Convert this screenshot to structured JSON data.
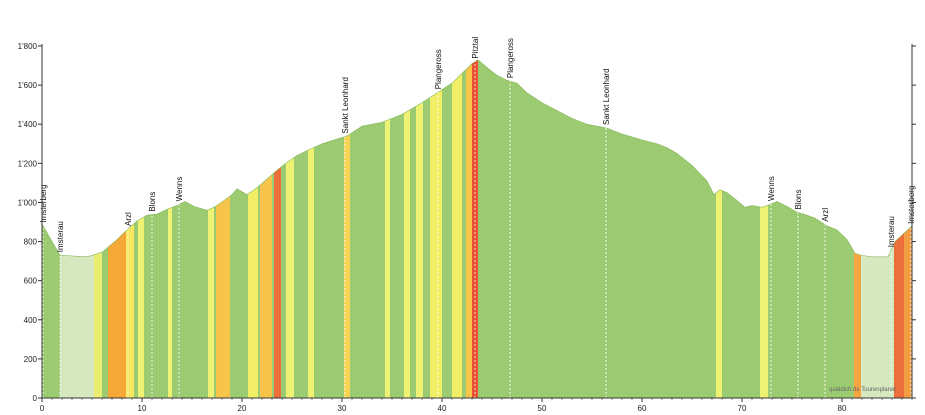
{
  "chart_data": {
    "type": "area",
    "title": "",
    "xlabel": "",
    "ylabel": "",
    "xlim": [
      0,
      87
    ],
    "ylim": [
      0,
      1800
    ],
    "x_ticks": [
      0,
      10,
      20,
      30,
      40,
      50,
      60,
      70,
      80
    ],
    "x_tick_labels": [
      "0",
      "10",
      "20",
      "30",
      "40",
      "50",
      "60",
      "70",
      "80"
    ],
    "y_ticks": [
      0,
      200,
      400,
      600,
      800,
      1000,
      1200,
      1400,
      1600,
      1800
    ],
    "y_tick_labels": [
      "0",
      "200",
      "400",
      "600",
      "800",
      "1'000",
      "1'200",
      "1'400",
      "1'600",
      "1'800"
    ],
    "grid": false,
    "profile": {
      "x": [
        0,
        1.8,
        4.5,
        6,
        7.5,
        8.5,
        9.5,
        10.5,
        11.5,
        12.5,
        13.5,
        14.3,
        15.2,
        16.5,
        17.2,
        18.2,
        19,
        19.5,
        20.5,
        21.5,
        22.5,
        23.5,
        24.5,
        25.5,
        26.5,
        28,
        30.5,
        32,
        34,
        36,
        38,
        39.5,
        41,
        42,
        43,
        43.6,
        44.5,
        45.5,
        46.5,
        47.5,
        48.5,
        50,
        51.5,
        53,
        54.5,
        56.5,
        58,
        60,
        61.5,
        62.5,
        63.5,
        65,
        66.5,
        67.2,
        67.8,
        68.5,
        69.5,
        70.3,
        71,
        72,
        72.8,
        73.5,
        74.5,
        75.5,
        76.5,
        77.3,
        78.5,
        79.5,
        80.5,
        81.3,
        81.9,
        83,
        84.6,
        85.3,
        87
      ],
      "y": [
        890,
        730,
        722,
        745,
        810,
        860,
        905,
        935,
        940,
        965,
        985,
        1005,
        980,
        960,
        975,
        1010,
        1040,
        1070,
        1040,
        1075,
        1120,
        1165,
        1205,
        1240,
        1265,
        1300,
        1340,
        1390,
        1410,
        1450,
        1510,
        1560,
        1610,
        1660,
        1710,
        1730,
        1690,
        1650,
        1625,
        1610,
        1560,
        1510,
        1470,
        1430,
        1400,
        1380,
        1350,
        1320,
        1300,
        1280,
        1250,
        1190,
        1110,
        1040,
        1065,
        1050,
        1010,
        975,
        985,
        975,
        990,
        1005,
        980,
        950,
        935,
        920,
        880,
        860,
        810,
        740,
        730,
        722,
        722,
        800,
        880
      ]
    },
    "light_sections": [
      [
        1.8,
        5.2
      ],
      [
        81.9,
        85.2
      ]
    ],
    "color_bands": [
      {
        "x0": 5.2,
        "x1": 6.0,
        "color": "#eaee6c"
      },
      {
        "x0": 6.6,
        "x1": 8.4,
        "color": "#f6a530"
      },
      {
        "x0": 8.4,
        "x1": 9.2,
        "color": "#f8e85c"
      },
      {
        "x0": 9.6,
        "x1": 10.2,
        "color": "#eef26e"
      },
      {
        "x0": 12.6,
        "x1": 13.0,
        "color": "#eef26e"
      },
      {
        "x0": 16.6,
        "x1": 17.2,
        "color": "#eef26e"
      },
      {
        "x0": 17.4,
        "x1": 18.8,
        "color": "#f7c244"
      },
      {
        "x0": 20.6,
        "x1": 21.6,
        "color": "#f2ee62"
      },
      {
        "x0": 21.8,
        "x1": 23.0,
        "color": "#f7c244"
      },
      {
        "x0": 23.2,
        "x1": 23.9,
        "color": "#ec6a34"
      },
      {
        "x0": 24.4,
        "x1": 25.2,
        "color": "#eef26e"
      },
      {
        "x0": 26.6,
        "x1": 27.2,
        "color": "#eef26e"
      },
      {
        "x0": 30.2,
        "x1": 30.8,
        "color": "#f7d24c"
      },
      {
        "x0": 34.3,
        "x1": 34.8,
        "color": "#eef26e"
      },
      {
        "x0": 36.2,
        "x1": 36.8,
        "color": "#eef26e"
      },
      {
        "x0": 37.4,
        "x1": 38.1,
        "color": "#eef26e"
      },
      {
        "x0": 38.8,
        "x1": 40.0,
        "color": "#f2ee62"
      },
      {
        "x0": 41.0,
        "x1": 42.0,
        "color": "#f2ee62"
      },
      {
        "x0": 42.4,
        "x1": 43.0,
        "color": "#f7c244"
      },
      {
        "x0": 43.0,
        "x1": 43.6,
        "color": "#ea4a2c"
      },
      {
        "x0": 67.4,
        "x1": 68.0,
        "color": "#eef26e"
      },
      {
        "x0": 71.8,
        "x1": 72.6,
        "color": "#eef26e"
      },
      {
        "x0": 81.2,
        "x1": 81.9,
        "color": "#f7a23a"
      },
      {
        "x0": 85.2,
        "x1": 86.2,
        "color": "#ec6a34"
      },
      {
        "x0": 86.2,
        "x1": 87.0,
        "color": "#f29a3a"
      }
    ],
    "places": [
      {
        "name": "Imsterberg",
        "x": 0.1
      },
      {
        "name": "Imsterau",
        "x": 1.8
      },
      {
        "name": "Arzl",
        "x": 8.6
      },
      {
        "name": "Blons",
        "x": 11.0
      },
      {
        "name": "Wenns",
        "x": 13.7
      },
      {
        "name": "Sankt Leonhard",
        "x": 30.3
      },
      {
        "name": "Plangeross",
        "x": 39.6
      },
      {
        "name": "Pitztal",
        "x": 43.3
      },
      {
        "name": "Plangeross",
        "x": 46.8
      },
      {
        "name": "Sankt Leonhard",
        "x": 56.4
      },
      {
        "name": "Wenns",
        "x": 72.9
      },
      {
        "name": "Blons",
        "x": 75.6
      },
      {
        "name": "Arzl",
        "x": 78.3
      },
      {
        "name": "Imsterau",
        "x": 84.9
      },
      {
        "name": "Imsterberg",
        "x": 86.9
      }
    ],
    "credit": "quäldich.de Tourenplaner"
  },
  "colors": {
    "base_green": "#98c96c",
    "light_green": "#d4e8bc",
    "axis": "#333333"
  }
}
